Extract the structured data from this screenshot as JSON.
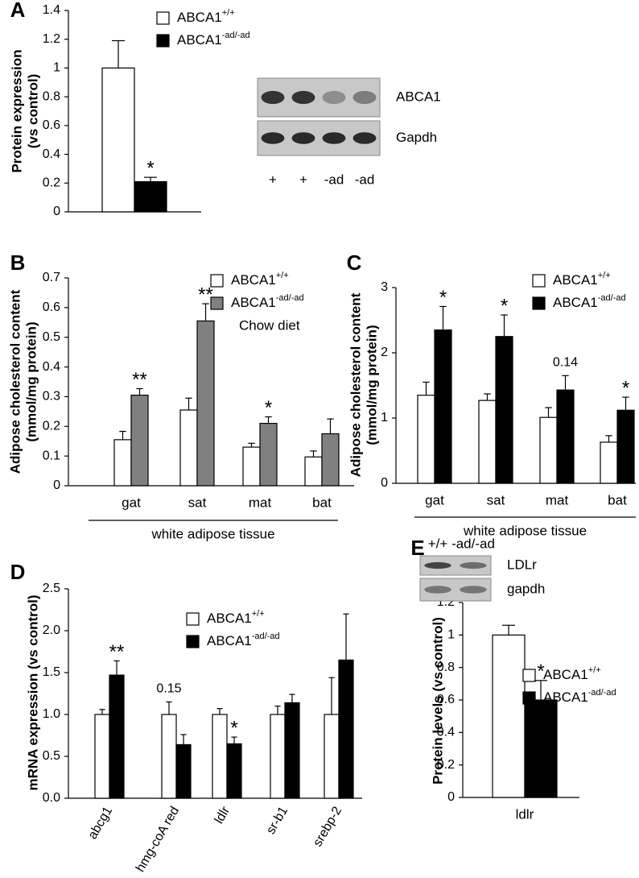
{
  "chart_data": [
    {
      "type": "bar",
      "panel": "A",
      "ylabel": [
        "Protein expression",
        "(vs control)"
      ],
      "categories": [
        null
      ],
      "series": [
        {
          "name": "ABCA1",
          "sup": "+/+",
          "color": "#ffffff",
          "values": [
            1.0
          ],
          "errors": [
            0.19
          ]
        },
        {
          "name": "ABCA1",
          "sup": "-ad/-ad",
          "color": "#000000",
          "values": [
            0.21
          ],
          "errors": [
            0.03
          ]
        }
      ],
      "ylim": [
        0,
        1.4
      ],
      "yticks": [
        0,
        0.2,
        0.4,
        0.6,
        0.8,
        1,
        1.2,
        1.4
      ],
      "annotations": [
        {
          "text": "*",
          "category": 0,
          "series": 1
        }
      ],
      "blot": {
        "bands": [
          "ABCA1",
          "Gapdh"
        ],
        "lanes": [
          "+",
          "+",
          "-ad",
          "-ad"
        ]
      }
    },
    {
      "type": "bar",
      "panel": "B",
      "ylabel": [
        "Adipose cholesterol content",
        "(mmol/mg protein)"
      ],
      "categories": [
        "gat",
        "sat",
        "mat",
        "bat"
      ],
      "group_label": "white adipose tissue",
      "note": "Chow diet",
      "series": [
        {
          "name": "ABCA1",
          "sup": "+/+",
          "color": "#ffffff",
          "values": [
            0.155,
            0.255,
            0.13,
            0.097
          ],
          "errors": [
            0.028,
            0.04,
            0.013,
            0.02
          ]
        },
        {
          "name": "ABCA1",
          "sup": "-ad/-ad",
          "color": "#808080",
          "values": [
            0.305,
            0.555,
            0.21,
            0.175
          ],
          "errors": [
            0.022,
            0.058,
            0.022,
            0.05
          ]
        }
      ],
      "ylim": [
        0,
        0.7
      ],
      "yticks": [
        0,
        0.1,
        0.2,
        0.3,
        0.4,
        0.5,
        0.6,
        0.7
      ],
      "annotations": [
        {
          "text": "**",
          "category": 0,
          "series": 1
        },
        {
          "text": "**",
          "category": 1,
          "series": 1
        },
        {
          "text": "*",
          "category": 2,
          "series": 1
        }
      ]
    },
    {
      "type": "bar",
      "panel": "C",
      "ylabel": [
        "Adipose cholesterol content",
        "(mmol/mg protein)"
      ],
      "categories": [
        "gat",
        "sat",
        "mat",
        "bat"
      ],
      "group_label": "white adipose tissue",
      "series": [
        {
          "name": "ABCA1",
          "sup": "+/+",
          "color": "#ffffff",
          "values": [
            1.35,
            1.27,
            1.01,
            0.63
          ],
          "errors": [
            0.2,
            0.1,
            0.15,
            0.1
          ]
        },
        {
          "name": "ABCA1",
          "sup": "-ad/-ad",
          "color": "#000000",
          "values": [
            2.35,
            2.25,
            1.43,
            1.12
          ],
          "errors": [
            0.36,
            0.33,
            0.22,
            0.2
          ]
        }
      ],
      "ylim": [
        0,
        3
      ],
      "yticks": [
        0,
        1,
        2,
        3
      ],
      "annotations": [
        {
          "text": "*",
          "category": 0,
          "series": 1
        },
        {
          "text": "*",
          "category": 1,
          "series": 1
        },
        {
          "text": "0.14",
          "category": 2,
          "series": 1
        },
        {
          "text": "*",
          "category": 3,
          "series": 1
        }
      ]
    },
    {
      "type": "bar",
      "panel": "D",
      "ylabel": [
        "mRNA expression (vs control)"
      ],
      "categories": [
        "abcg1",
        "hmg-coA red",
        "ldlr",
        "sr-b1",
        "srebp-2"
      ],
      "series": [
        {
          "name": "ABCA1",
          "sup": "+/+",
          "color": "#ffffff",
          "values": [
            1.0,
            1.0,
            1.0,
            1.0,
            1.0
          ],
          "errors": [
            0.06,
            0.15,
            0.07,
            0.1,
            0.44
          ]
        },
        {
          "name": "ABCA1",
          "sup": "-ad/-ad",
          "color": "#000000",
          "values": [
            1.47,
            0.64,
            0.65,
            1.14,
            1.65
          ],
          "errors": [
            0.17,
            0.12,
            0.08,
            0.1,
            0.55
          ]
        }
      ],
      "ylim": [
        0,
        2.5
      ],
      "yticks": [
        {
          "value": 0,
          "label": "0.0"
        },
        {
          "value": 0.5,
          "label": "0.5"
        },
        {
          "value": 1,
          "label": "1.0"
        },
        {
          "value": 1.5,
          "label": "1.5"
        },
        {
          "value": 2,
          "label": "2.0"
        },
        {
          "value": 2.5,
          "label": "2.5"
        }
      ],
      "annotations": [
        {
          "text": "**",
          "category": 0,
          "series": 1
        },
        {
          "text": "0.15",
          "category": 1,
          "series": 0
        },
        {
          "text": "*",
          "category": 2,
          "series": 1
        }
      ]
    },
    {
      "type": "bar",
      "panel": "E",
      "ylabel": [
        "Protein levels (vs control)"
      ],
      "categories": [
        "ldlr"
      ],
      "series": [
        {
          "name": "ABCA1",
          "sup": "+/+",
          "color": "#ffffff",
          "values": [
            1.0
          ],
          "errors": [
            0.06
          ]
        },
        {
          "name": "ABCA1",
          "sup": "-ad/-ad",
          "color": "#000000",
          "values": [
            0.6
          ],
          "errors": [
            0.12
          ]
        }
      ],
      "ylim": [
        0,
        1.2
      ],
      "yticks": [
        0,
        0.2,
        0.4,
        0.6,
        0.8,
        1,
        1.2
      ],
      "annotations": [
        {
          "text": "*",
          "category": 0,
          "series": 1
        }
      ],
      "blot": {
        "bands": [
          "LDLr",
          "gapdh"
        ],
        "lanes": [
          "+/+",
          "-ad/-ad"
        ]
      }
    }
  ]
}
